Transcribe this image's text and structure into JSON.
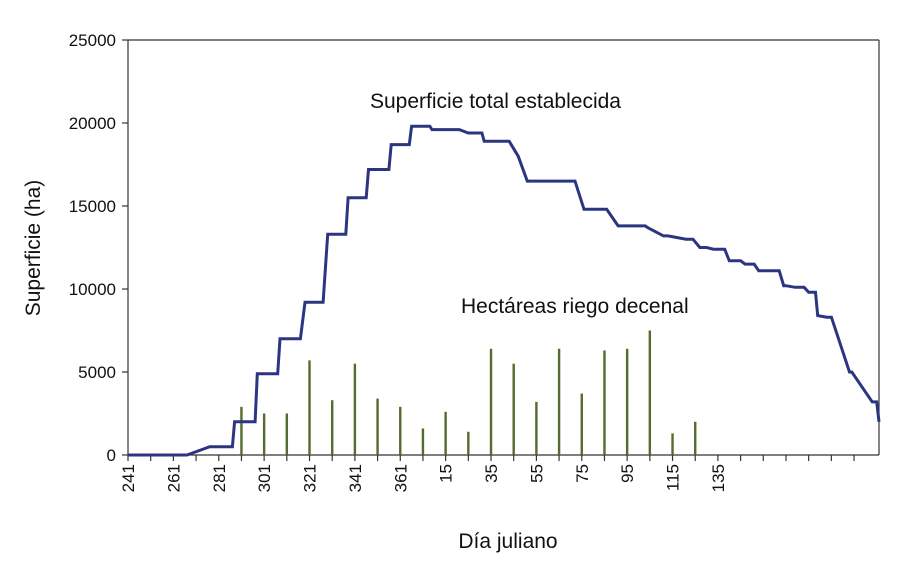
{
  "chart_data": {
    "type": "line",
    "xlabel": "Día juliano",
    "ylabel": "Superficie (ha)",
    "ylim": [
      0,
      25000
    ],
    "yticks": [
      "0",
      "5000",
      "10000",
      "15000",
      "20000",
      "25000"
    ],
    "xticks": [
      "241",
      "261",
      "281",
      "301",
      "321",
      "341",
      "361",
      "15",
      "35",
      "55",
      "75",
      "95",
      "115",
      "135"
    ],
    "grid": false,
    "colors": {
      "total": "#2b3580",
      "decenal": "#556b2f"
    },
    "annotations": [
      {
        "text": "Superficie total establecida",
        "series": "total"
      },
      {
        "text": "Hectáreas riego decenal",
        "series": "decenal"
      }
    ],
    "series": [
      {
        "kind": "step-line",
        "x_day_index": [
          0,
          17,
          26,
          36,
          38,
          46,
          47,
          56,
          57,
          66,
          67,
          76,
          78,
          86,
          88,
          96,
          97,
          105,
          106,
          115,
          116,
          124,
          125,
          133,
          134,
          143,
          144,
          146,
          150,
          156,
          157,
          160,
          161,
          166,
          168,
          172,
          176,
          181,
          195,
          197,
          201,
          204,
          210,
          211,
          216,
          219,
          228,
          229,
          236,
          238,
          246,
          249,
          252,
          255,
          258,
          263,
          265,
          270,
          272,
          276,
          278,
          287,
          289,
          290,
          294,
          298,
          300,
          303,
          304,
          308,
          310,
          318,
          319,
          328,
          330,
          331
        ],
        "y": [
          0,
          0,
          0,
          500,
          500,
          500,
          2000,
          2000,
          4900,
          4900,
          7000,
          7000,
          9200,
          9200,
          13300,
          13300,
          15500,
          15500,
          17200,
          17200,
          18700,
          18700,
          19800,
          19800,
          19600,
          19600,
          19600,
          19600,
          19400,
          19400,
          18900,
          18900,
          18900,
          18900,
          18900,
          18000,
          16500,
          16500,
          16500,
          16500,
          14800,
          14800,
          14800,
          14800,
          13800,
          13800,
          13800,
          13700,
          13200,
          13200,
          13000,
          13000,
          12500,
          12500,
          12400,
          12400,
          11700,
          11700,
          11500,
          11500,
          11100,
          11100,
          10200,
          10200,
          10100,
          10100,
          9800,
          9800,
          8400,
          8300,
          8300,
          5000,
          5000,
          3200,
          3200,
          2000
        ]
      },
      {
        "kind": "bars",
        "x_day_index": [
          50,
          60,
          70,
          80,
          90,
          100,
          110,
          120,
          130,
          140,
          150,
          160,
          170,
          180,
          190,
          200,
          210,
          220,
          230,
          240,
          250,
          260,
          270,
          280,
          290,
          300
        ],
        "y": [
          2900,
          2500,
          2500,
          5700,
          3300,
          5500,
          3400,
          2900,
          1600,
          2600,
          1400,
          6400,
          5500,
          3200,
          6400,
          3700,
          6300,
          6400,
          7500,
          1300,
          2000,
          0,
          0,
          0,
          0,
          0
        ]
      }
    ]
  }
}
